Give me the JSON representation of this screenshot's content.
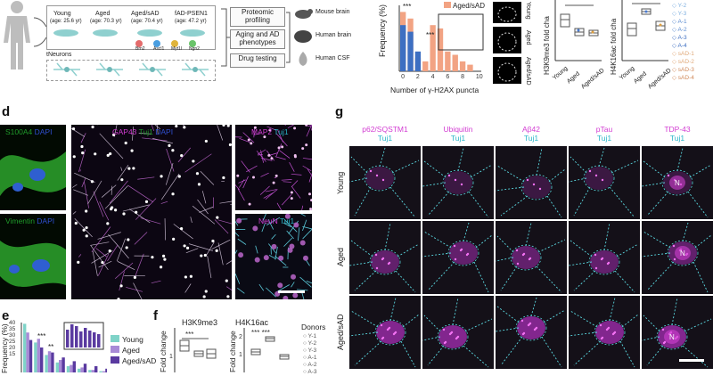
{
  "panel_a": {
    "groups": [
      "Young",
      "Aged",
      "Aged/sAD",
      "fAD-PSEN1"
    ],
    "ages": [
      "(age: 25.6 yr)",
      "(age: 70.3 yr)",
      "(age: 70.4 yr)",
      "(age: 47.2 yr)"
    ],
    "tf_labels": [
      "Brn2",
      "Ascl1",
      "Myt1l",
      "Ngn2"
    ],
    "tneurons": "tNeurons"
  },
  "panel_b": {
    "steps": [
      "Proteomic profiling",
      "Aging and AD phenotypes",
      "Drug testing"
    ],
    "validation": [
      "Mouse brain",
      "Human brain",
      "Human CSF"
    ]
  },
  "panel_c": {
    "chart_data": {
      "type": "bar",
      "xlabel": "Number of γ-H2AX puncta",
      "ylabel": "Frequency (%)",
      "x": [
        0,
        1,
        2,
        3,
        4,
        5,
        6,
        7,
        8,
        9,
        10
      ],
      "x_ticks": [
        "0",
        "2",
        "4",
        "6",
        "8",
        "10"
      ],
      "ylim": [
        0,
        20
      ],
      "series": [
        {
          "name": "Aged/sAD",
          "color": "#f2a383",
          "values": [
            18,
            16,
            4,
            3,
            14,
            13,
            6,
            5,
            3,
            2,
            0
          ]
        }
      ],
      "annotations": [
        "***",
        "***"
      ],
      "legend": "top-right"
    }
  },
  "panel_h3k9": {
    "ylabel": "H3K9me3 fold cha",
    "categories": [
      "Young",
      "Aged",
      "Aged/sAD"
    ]
  },
  "panel_h4k16": {
    "ylabel": "H4K16ac fold cha",
    "categories": [
      "Young",
      "Aged",
      "Aged/sAD"
    ],
    "legend": [
      "Y-2",
      "Y-3",
      "A-1",
      "A-2",
      "A-3",
      "A-4",
      "sAD-1",
      "sAD-2",
      "sAD-3",
      "sAD-4"
    ]
  },
  "panel_d": {
    "letter": "d",
    "labels": {
      "s100a4": "S100A4",
      "dapi1": "DAPI",
      "vimentin": "Vimentin",
      "dapi2": "DAPI",
      "gap43": "GAP43",
      "tuj1a": "Tuj1",
      "dapi3": "DAPI",
      "map2": "MAP2",
      "tuj1b": "Tuj1",
      "neun": "NeuN",
      "tuj1c": "Tuj1"
    }
  },
  "panel_e": {
    "letter": "e",
    "chart_data": {
      "type": "bar",
      "ylabel": "Frequency (%)",
      "y_ticks": [
        "0",
        "5",
        "10",
        "15",
        "20",
        "25",
        "30",
        "35",
        "40"
      ],
      "ylim": [
        0,
        40
      ],
      "series": [
        {
          "name": "Young",
          "color": "#7fd3c8",
          "values": [
            39,
            24,
            14,
            8,
            5,
            3,
            2,
            1
          ]
        },
        {
          "name": "Aged",
          "color": "#a88ad6",
          "values": [
            32,
            27,
            17,
            10,
            6,
            4,
            2,
            1
          ]
        },
        {
          "name": "Aged/sAD",
          "color": "#5a3aa0",
          "values": [
            26,
            20,
            16,
            12,
            9,
            7,
            5,
            3
          ]
        }
      ],
      "annotations": [
        "***",
        "**"
      ],
      "legend": "right"
    }
  },
  "panel_f": {
    "letter": "f",
    "h3k9": {
      "title": "H3K9me3",
      "ylabel": "Fold change",
      "y_ticks": [
        "0",
        "1"
      ],
      "annotation": "***"
    },
    "h4k16": {
      "title": "H4K16ac",
      "ylabel": "Fold change",
      "y_ticks": [
        "0",
        "1",
        "2"
      ],
      "annotation": "*** ***"
    },
    "donors_title": "Donors",
    "donors": [
      "Y-1",
      "Y-2",
      "Y-3",
      "A-1",
      "A-2",
      "A-3"
    ]
  },
  "panel_g": {
    "letter": "g",
    "columns": [
      {
        "marker": "p62/SQSTM1",
        "co": "Tuj1"
      },
      {
        "marker": "Ubiquitin",
        "co": "Tuj1"
      },
      {
        "marker": "Aβ42",
        "co": "Tuj1"
      },
      {
        "marker": "pTau",
        "co": "Tuj1"
      },
      {
        "marker": "TDP-43",
        "co": "Tuj1"
      }
    ],
    "rows": [
      "Young",
      "Aged",
      "Aged/sAD"
    ],
    "nucleus_label": "N"
  },
  "panel_c_images": {
    "rows": [
      "Young",
      "Aged",
      "Aged/sAD"
    ]
  }
}
